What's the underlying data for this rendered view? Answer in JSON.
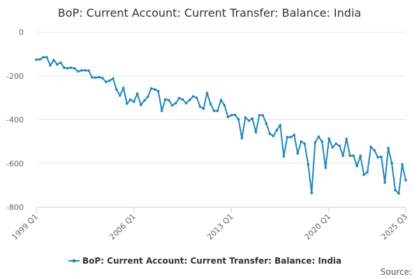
{
  "chart_data": {
    "type": "line",
    "title": "BoP: Current Account: Current Transfer: Balance: India",
    "xlabel": "",
    "ylabel": "",
    "ylim": [
      -800,
      0
    ],
    "y_ticks": [
      0,
      -200,
      -400,
      -600,
      -800
    ],
    "y_tick_labels": [
      "0",
      "-200",
      "-400",
      "-600",
      "-800"
    ],
    "x_tick_labels": [
      "1999 Q1",
      "2006 Q1",
      "2013 Q1",
      "2020 Q1",
      "2025 Q3"
    ],
    "x_tick_indices": [
      0,
      28,
      56,
      84,
      106
    ],
    "grid": "horizontal",
    "legend_position": "bottom",
    "series_color": "#1f86bd",
    "source_label": "Source:",
    "series": [
      {
        "name": "BoP: Current Account: Current Transfer: Balance: India",
        "x_start": "1999 Q1",
        "frequency": "quarterly",
        "values": [
          -126,
          -125,
          -115,
          -115,
          -152,
          -128,
          -148,
          -140,
          -163,
          -165,
          -163,
          -166,
          -180,
          -175,
          -175,
          -176,
          -207,
          -208,
          -206,
          -210,
          -228,
          -222,
          -212,
          -262,
          -290,
          -255,
          -327,
          -309,
          -318,
          -281,
          -333,
          -313,
          -295,
          -258,
          -262,
          -270,
          -360,
          -308,
          -311,
          -335,
          -325,
          -302,
          -308,
          -325,
          -310,
          -294,
          -300,
          -341,
          -350,
          -278,
          -328,
          -360,
          -360,
          -310,
          -335,
          -388,
          -380,
          -378,
          -398,
          -485,
          -390,
          -405,
          -395,
          -458,
          -380,
          -380,
          -418,
          -465,
          -475,
          -448,
          -425,
          -568,
          -480,
          -480,
          -470,
          -555,
          -500,
          -510,
          -605,
          -735,
          -505,
          -478,
          -500,
          -620,
          -487,
          -527,
          -510,
          -520,
          -565,
          -488,
          -565,
          -565,
          -612,
          -565,
          -652,
          -640,
          -525,
          -540,
          -572,
          -570,
          -688,
          -530,
          -598,
          -722,
          -738,
          -605,
          -677
        ]
      }
    ]
  }
}
